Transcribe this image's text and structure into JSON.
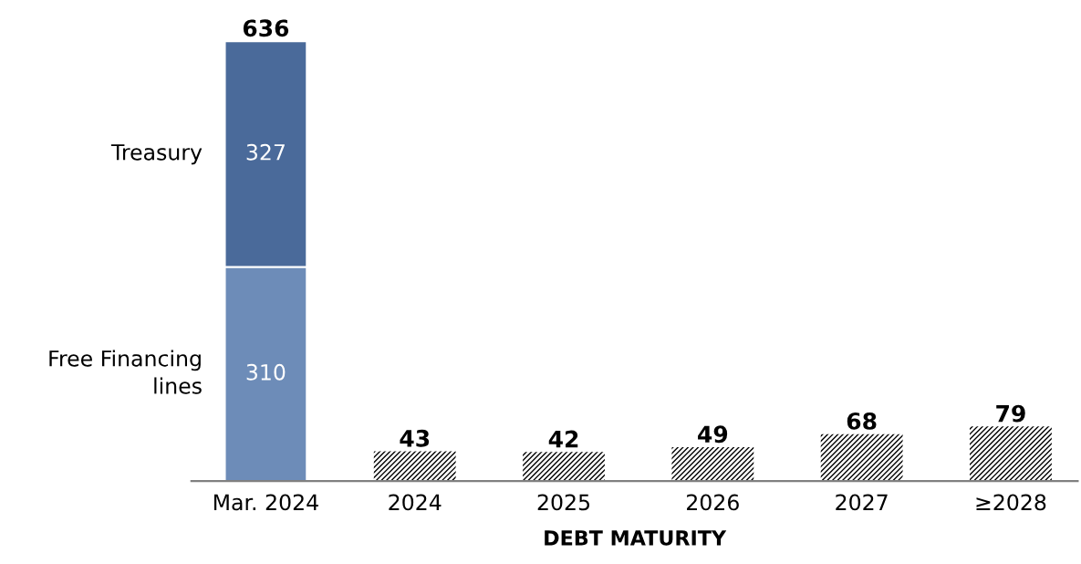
{
  "chart_data": {
    "type": "bar",
    "stacked": true,
    "xlabel": "DEBT MATURITY",
    "categories": [
      "Mar. 2024",
      "2024",
      "2025",
      "2026",
      "2027",
      "≥2028"
    ],
    "series": [
      {
        "name": "Free Financing\nlines",
        "color": "#6d8cb8",
        "values": [
          310,
          null,
          null,
          null,
          null,
          null
        ],
        "value_labels": [
          "310",
          null,
          null,
          null,
          null,
          null
        ]
      },
      {
        "name": "Treasury",
        "color": "#4a6a9a",
        "values": [
          327,
          null,
          null,
          null,
          null,
          null
        ],
        "value_labels": [
          "327",
          null,
          null,
          null,
          null,
          null
        ]
      },
      {
        "color": "#000000",
        "values": [
          null,
          43,
          42,
          49,
          68,
          79
        ],
        "value_labels": [
          null,
          "43",
          "42",
          "49",
          "68",
          "79"
        ]
      }
    ],
    "totals": [
      "636",
      null,
      null,
      null,
      null,
      null
    ],
    "grid": false,
    "legend": false
  }
}
